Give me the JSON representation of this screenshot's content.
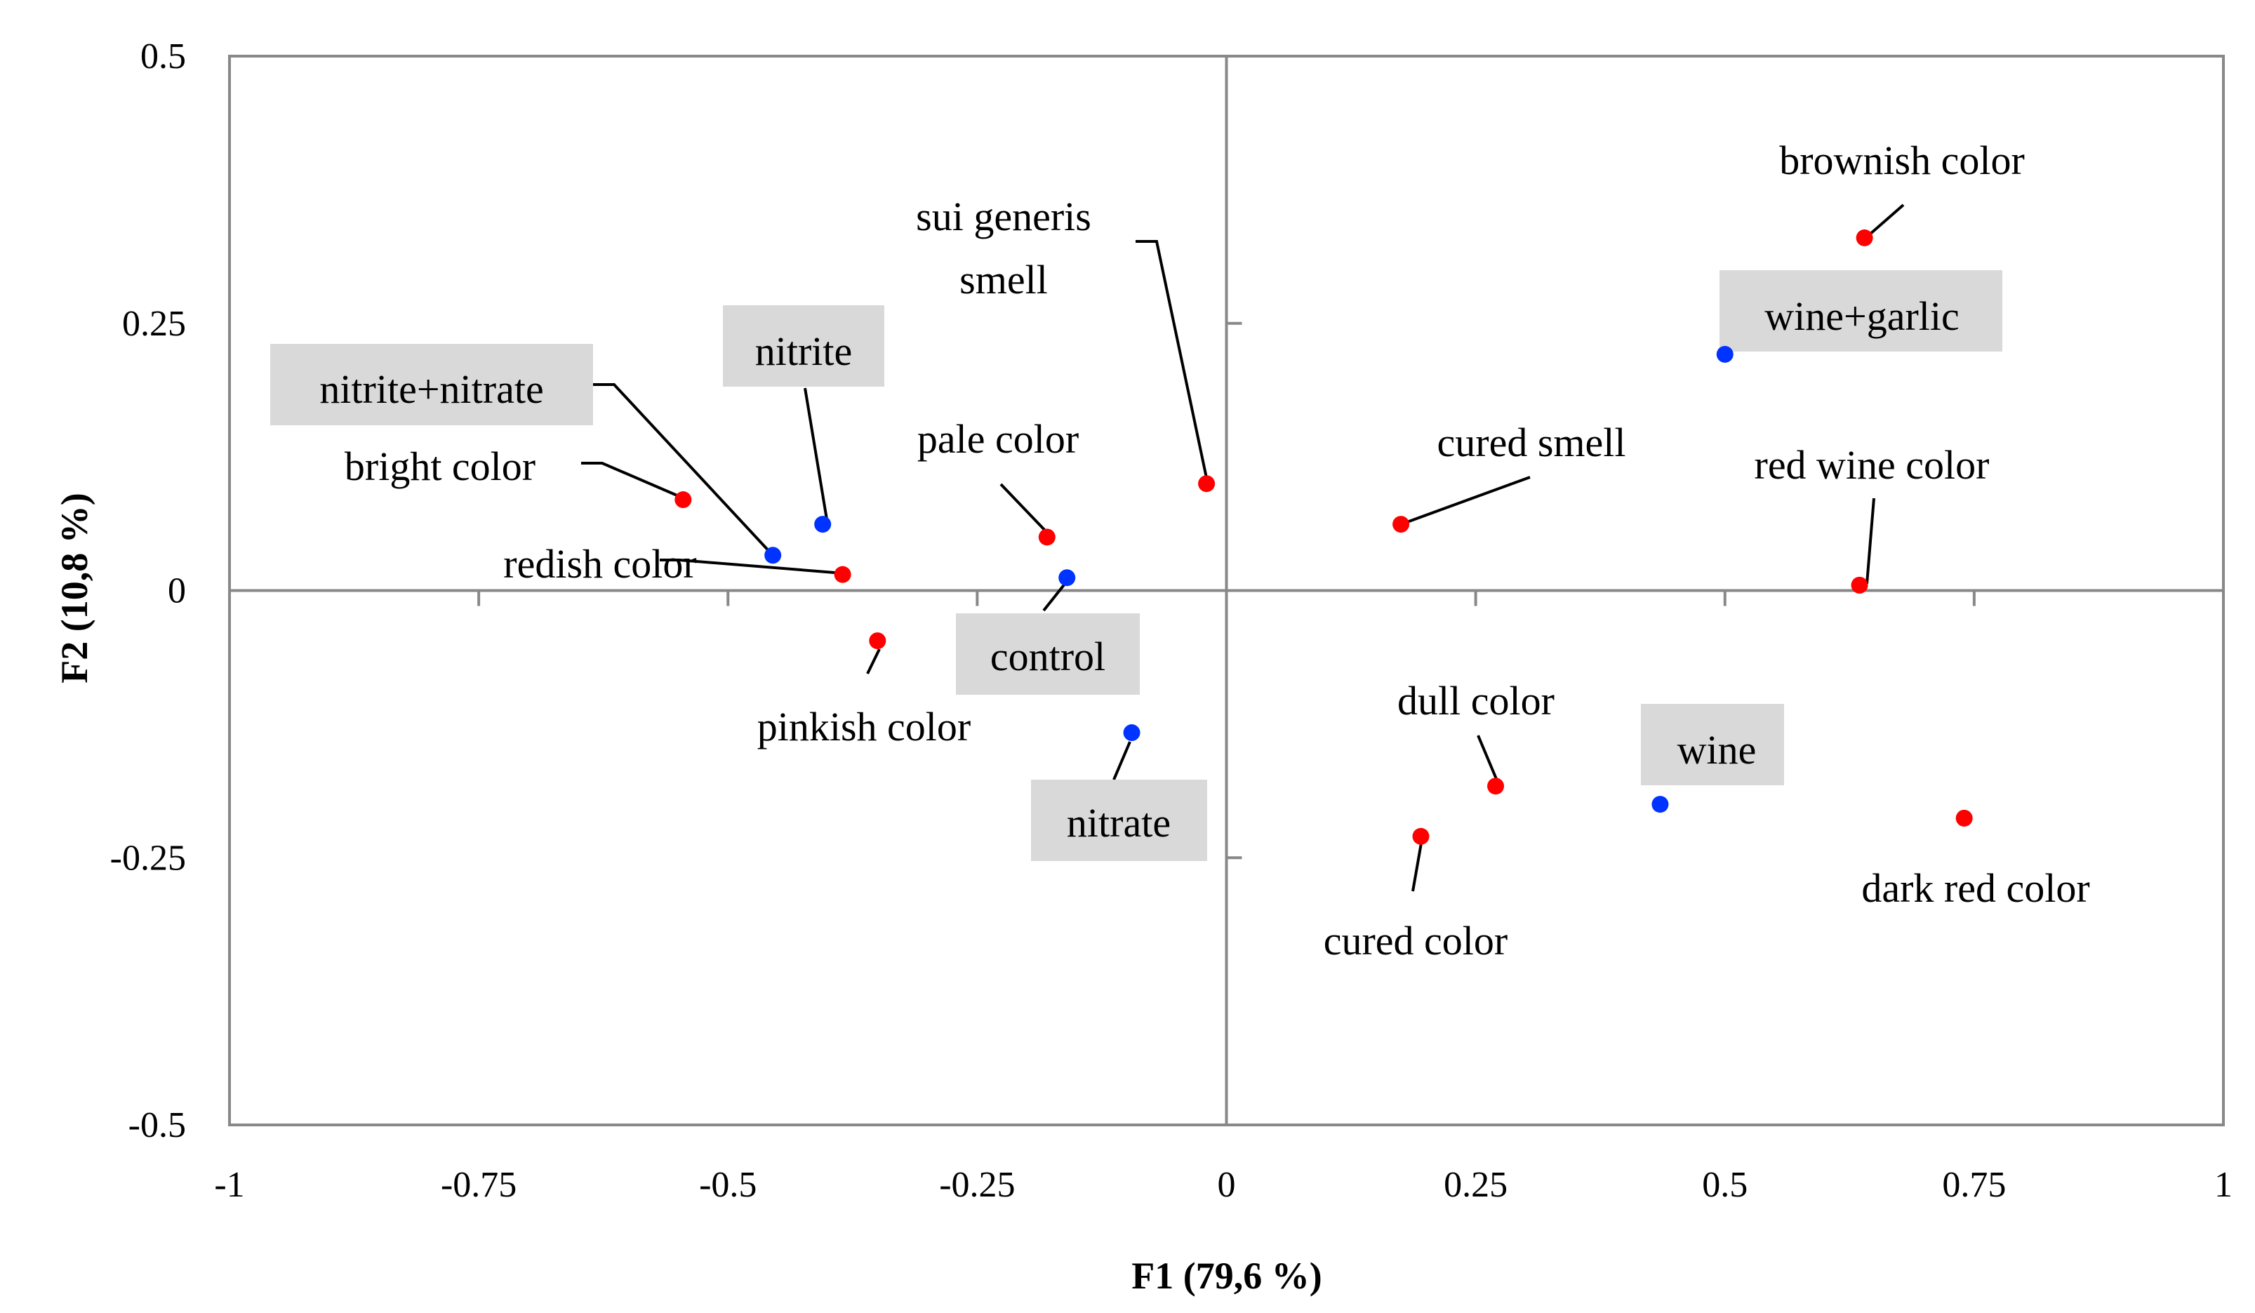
{
  "chart_data": {
    "type": "scatter",
    "xlabel": "F1 (79,6 %)",
    "ylabel": "F2 (10,8 %)",
    "xlim": [
      -1,
      1
    ],
    "ylim": [
      -0.5,
      0.5
    ],
    "x_ticks": [
      "-1",
      "-0.75",
      "-0.5",
      "-0.25",
      "0",
      "0.25",
      "0.5",
      "0.75",
      "1"
    ],
    "y_ticks": [
      "0.5",
      "0.25",
      "0",
      "-0.25",
      "-0.5"
    ],
    "grid": false,
    "colors": {
      "attribute": "#ff0000",
      "sample": "#0033ff"
    },
    "series": [
      {
        "group": "attribute",
        "points": [
          {
            "label": "brownish color",
            "x": 0.64,
            "y": 0.33
          },
          {
            "label": "sui generis smell",
            "x": -0.02,
            "y": 0.1
          },
          {
            "label": "bright color",
            "x": -0.545,
            "y": 0.085
          },
          {
            "label": "pale color",
            "x": -0.18,
            "y": 0.05
          },
          {
            "label": "cured smell",
            "x": 0.175,
            "y": 0.062
          },
          {
            "label": "red wine color",
            "x": 0.635,
            "y": 0.005
          },
          {
            "label": "redish color",
            "x": -0.385,
            "y": 0.015
          },
          {
            "label": "pinkish color",
            "x": -0.35,
            "y": -0.047
          },
          {
            "label": "dull color",
            "x": 0.27,
            "y": -0.183
          },
          {
            "label": "cured color",
            "x": 0.195,
            "y": -0.23
          },
          {
            "label": "dark red color",
            "x": 0.74,
            "y": -0.213
          }
        ]
      },
      {
        "group": "sample",
        "points": [
          {
            "label": "wine+garlic",
            "x": 0.5,
            "y": 0.221
          },
          {
            "label": "nitrite",
            "x": -0.405,
            "y": 0.062
          },
          {
            "label": "nitrite+nitrate",
            "x": -0.455,
            "y": 0.033
          },
          {
            "label": "control",
            "x": -0.16,
            "y": 0.012
          },
          {
            "label": "nitrate",
            "x": -0.095,
            "y": -0.133
          },
          {
            "label": "wine",
            "x": 0.435,
            "y": -0.2
          }
        ]
      }
    ]
  }
}
